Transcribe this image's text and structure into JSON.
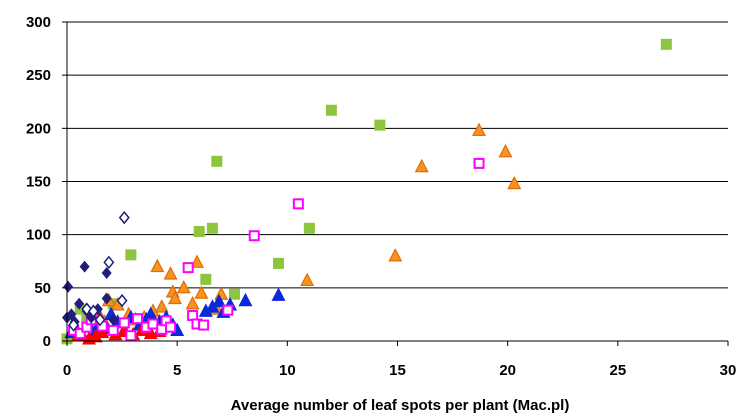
{
  "chart_data": {
    "type": "scatter",
    "xlabel": "Average number of leaf spots per plant (Mac.pl)",
    "ylabel": "",
    "xlim": [
      0,
      30
    ],
    "ylim": [
      0,
      300
    ],
    "x_ticks": [
      "0",
      "5",
      "10",
      "15",
      "20",
      "25",
      "30"
    ],
    "y_ticks": [
      "0",
      "50",
      "100",
      "150",
      "200",
      "250",
      "300"
    ],
    "grid": "horizontal",
    "legend": "none",
    "series": [
      {
        "marker": "square-filled",
        "color": "#8DC53E",
        "points": [
          [
            0,
            2
          ],
          [
            0.6,
            30
          ],
          [
            0.9,
            22
          ],
          [
            1.2,
            18
          ],
          [
            2.1,
            35
          ],
          [
            2.9,
            81
          ],
          [
            6.0,
            103
          ],
          [
            6.3,
            58
          ],
          [
            6.6,
            106
          ],
          [
            6.8,
            169
          ],
          [
            7.6,
            44
          ],
          [
            9.6,
            73
          ],
          [
            11.0,
            106
          ],
          [
            12.0,
            217
          ],
          [
            14.2,
            203
          ],
          [
            27.2,
            279
          ]
        ]
      },
      {
        "marker": "triangle-filled",
        "color": "#F7941D",
        "edge": "#E26B0A",
        "points": [
          [
            1.4,
            27
          ],
          [
            1.7,
            18
          ],
          [
            1.9,
            38
          ],
          [
            2.3,
            34
          ],
          [
            2.8,
            25
          ],
          [
            3.1,
            20
          ],
          [
            3.5,
            22
          ],
          [
            3.9,
            28
          ],
          [
            4.1,
            70
          ],
          [
            4.3,
            32
          ],
          [
            4.7,
            63
          ],
          [
            4.8,
            46
          ],
          [
            4.9,
            40
          ],
          [
            5.3,
            50
          ],
          [
            5.7,
            35
          ],
          [
            5.9,
            74
          ],
          [
            6.1,
            45
          ],
          [
            6.8,
            30
          ],
          [
            7.0,
            44
          ],
          [
            10.9,
            57
          ],
          [
            14.9,
            80
          ],
          [
            16.1,
            164
          ],
          [
            18.7,
            198
          ],
          [
            19.9,
            178
          ],
          [
            20.3,
            148
          ]
        ]
      },
      {
        "marker": "triangle-filled",
        "color": "#0A29D8",
        "edge": "#0A29D8",
        "points": [
          [
            0.2,
            8
          ],
          [
            0.4,
            12
          ],
          [
            0.7,
            5
          ],
          [
            1.0,
            14
          ],
          [
            1.3,
            9
          ],
          [
            1.5,
            20
          ],
          [
            1.8,
            12
          ],
          [
            2.0,
            25
          ],
          [
            2.3,
            18
          ],
          [
            2.6,
            10
          ],
          [
            2.9,
            22
          ],
          [
            3.3,
            15
          ],
          [
            3.6,
            20
          ],
          [
            3.8,
            25
          ],
          [
            4.2,
            18
          ],
          [
            4.5,
            22
          ],
          [
            4.8,
            15
          ],
          [
            5.0,
            10
          ],
          [
            6.3,
            28
          ],
          [
            6.6,
            32
          ],
          [
            6.9,
            37
          ],
          [
            7.1,
            27
          ],
          [
            7.4,
            34
          ],
          [
            8.1,
            38
          ],
          [
            9.6,
            43
          ]
        ]
      },
      {
        "marker": "triangle-filled",
        "color": "#FF0000",
        "edge": "#FF0000",
        "points": [
          [
            0.5,
            5
          ],
          [
            1.0,
            2
          ],
          [
            1.3,
            4
          ],
          [
            1.6,
            8
          ],
          [
            2.2,
            6
          ],
          [
            2.6,
            9
          ],
          [
            3.0,
            6
          ],
          [
            3.4,
            10
          ],
          [
            3.8,
            7
          ],
          [
            4.2,
            9
          ]
        ]
      },
      {
        "marker": "square-open",
        "color": "#FF00FF",
        "points": [
          [
            0.3,
            10
          ],
          [
            0.6,
            7
          ],
          [
            0.9,
            13
          ],
          [
            1.1,
            20
          ],
          [
            1.6,
            14
          ],
          [
            2.1,
            10
          ],
          [
            2.6,
            17
          ],
          [
            2.9,
            5
          ],
          [
            3.2,
            21
          ],
          [
            3.6,
            13
          ],
          [
            3.9,
            16
          ],
          [
            4.3,
            11
          ],
          [
            4.5,
            19
          ],
          [
            4.7,
            13
          ],
          [
            5.5,
            69
          ],
          [
            5.7,
            24
          ],
          [
            5.9,
            16
          ],
          [
            6.2,
            15
          ],
          [
            7.3,
            29
          ],
          [
            8.5,
            99
          ],
          [
            10.5,
            129
          ],
          [
            18.7,
            167
          ]
        ]
      },
      {
        "marker": "diamond-filled",
        "color": "#1F1F7A",
        "points": [
          [
            0.0,
            22
          ],
          [
            0.05,
            51
          ],
          [
            0.2,
            25
          ],
          [
            0.35,
            18
          ],
          [
            0.55,
            35
          ],
          [
            0.8,
            70
          ],
          [
            0.9,
            28
          ],
          [
            1.1,
            22
          ],
          [
            1.4,
            30
          ],
          [
            1.8,
            40
          ],
          [
            1.8,
            64
          ],
          [
            2.1,
            20
          ]
        ]
      },
      {
        "marker": "diamond-open",
        "color": "#1F1F7A",
        "points": [
          [
            0.3,
            15
          ],
          [
            0.9,
            30
          ],
          [
            1.2,
            28
          ],
          [
            1.5,
            20
          ],
          [
            1.9,
            74
          ],
          [
            2.5,
            38
          ],
          [
            2.6,
            116
          ]
        ]
      }
    ]
  }
}
